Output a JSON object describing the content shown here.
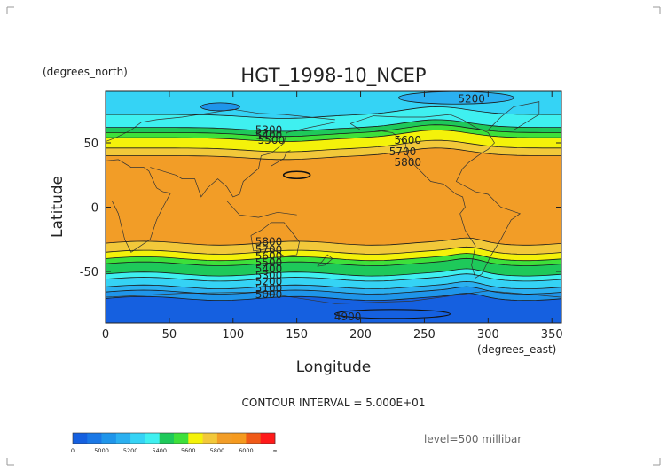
{
  "chart_data": {
    "type": "heatmap",
    "title": "HGT_1998-10_NCEP",
    "xlabel": "Longitude",
    "ylabel": "Latitude",
    "x_units": "(degrees_east)",
    "y_units": "(degrees_north)",
    "xlim": [
      0,
      357.5
    ],
    "ylim": [
      -90,
      90
    ],
    "x_ticks": [
      0,
      50,
      100,
      150,
      200,
      250,
      300,
      350
    ],
    "y_ticks": [
      -50,
      0,
      50
    ],
    "grid": false,
    "contour_interval_text": "CONTOUR INTERVAL = 5.000E+01",
    "level_text": "level=500 millibar",
    "colorbar": {
      "bins": [
        {
          "lo": 0,
          "hi": 4950,
          "color": "#1560e0"
        },
        {
          "lo": 4950,
          "hi": 5000,
          "color": "#1a78e6"
        },
        {
          "lo": 5000,
          "hi": 5100,
          "color": "#1f95ea"
        },
        {
          "lo": 5100,
          "hi": 5200,
          "color": "#2bb0f0"
        },
        {
          "lo": 5200,
          "hi": 5300,
          "color": "#35d3f5"
        },
        {
          "lo": 5300,
          "hi": 5400,
          "color": "#3ff0f0"
        },
        {
          "lo": 5400,
          "hi": 5500,
          "color": "#1ec95a"
        },
        {
          "lo": 5500,
          "hi": 5600,
          "color": "#3ee03a"
        },
        {
          "lo": 5600,
          "hi": 5700,
          "color": "#f4f20a"
        },
        {
          "lo": 5700,
          "hi": 5800,
          "color": "#f2c83a"
        },
        {
          "lo": 5800,
          "hi": 5900,
          "color": "#f29d27"
        },
        {
          "lo": 5900,
          "hi": 6000,
          "color": "#f59a1f"
        },
        {
          "lo": 6000,
          "hi": 6100,
          "color": "#f05a18"
        },
        {
          "lo": 6100,
          "hi": 99999,
          "color": "#ff1a1a"
        }
      ],
      "tick_labels": [
        "0",
        "5000",
        "5200",
        "5400",
        "5600",
        "5800",
        "6000",
        "∞"
      ]
    },
    "zonal_bands": [
      {
        "lat_from": 90,
        "lat_to": 72,
        "value_range": "5200-5300",
        "color": "#35d3f5"
      },
      {
        "lat_from": 72,
        "lat_to": 62,
        "value_range": "5300-5400",
        "color": "#3ff0f0"
      },
      {
        "lat_from": 62,
        "lat_to": 58,
        "value_range": "5400-5500",
        "color": "#1ec95a"
      },
      {
        "lat_from": 58,
        "lat_to": 54,
        "value_range": "5500-5600",
        "color": "#3ee03a"
      },
      {
        "lat_from": 54,
        "lat_to": 46,
        "value_range": "5600-5700",
        "color": "#f4f20a"
      },
      {
        "lat_from": 46,
        "lat_to": 40,
        "value_range": "5700-5800",
        "color": "#f2c83a"
      },
      {
        "lat_from": 40,
        "lat_to": -28,
        "value_range": "5800-5900",
        "color": "#f29d27"
      },
      {
        "lat_from": -28,
        "lat_to": -35,
        "value_range": "5700-5800",
        "color": "#f2c83a"
      },
      {
        "lat_from": -35,
        "lat_to": -40,
        "value_range": "5600-5700",
        "color": "#f4f20a"
      },
      {
        "lat_from": -40,
        "lat_to": -44,
        "value_range": "5500-5600",
        "color": "#3ee03a"
      },
      {
        "lat_from": -44,
        "lat_to": -52,
        "value_range": "5400-5500",
        "color": "#1ec95a"
      },
      {
        "lat_from": -52,
        "lat_to": -56,
        "value_range": "5300-5400",
        "color": "#3ff0f0"
      },
      {
        "lat_from": -56,
        "lat_to": -62,
        "value_range": "5200-5300",
        "color": "#35d3f5"
      },
      {
        "lat_from": -62,
        "lat_to": -66,
        "value_range": "5100-5200",
        "color": "#2bb0f0"
      },
      {
        "lat_from": -66,
        "lat_to": -71,
        "value_range": "5000-5100",
        "color": "#1f95ea"
      },
      {
        "lat_from": -71,
        "lat_to": -90,
        "value_range": "4900-5000",
        "color": "#1560e0"
      }
    ],
    "contour_labels": [
      {
        "text": "5200",
        "lon": 287,
        "lat": 84
      },
      {
        "text": "5300",
        "lon": 128,
        "lat": 60
      },
      {
        "text": "5400",
        "lon": 128,
        "lat": 56
      },
      {
        "text": "5500",
        "lon": 130,
        "lat": 52
      },
      {
        "text": "5600",
        "lon": 237,
        "lat": 52
      },
      {
        "text": "5700",
        "lon": 233,
        "lat": 43
      },
      {
        "text": "5800",
        "lon": 237,
        "lat": 35
      },
      {
        "text": "5800",
        "lon": 128,
        "lat": -27
      },
      {
        "text": "5700",
        "lon": 128,
        "lat": -33
      },
      {
        "text": "5600",
        "lon": 128,
        "lat": -38
      },
      {
        "text": "5500",
        "lon": 128,
        "lat": -43
      },
      {
        "text": "5400",
        "lon": 128,
        "lat": -48
      },
      {
        "text": "5300",
        "lon": 128,
        "lat": -53
      },
      {
        "text": "5200",
        "lon": 128,
        "lat": -58
      },
      {
        "text": "5100",
        "lon": 128,
        "lat": -63
      },
      {
        "text": "5000",
        "lon": 128,
        "lat": -68
      },
      {
        "text": "4900",
        "lon": 190,
        "lat": -85
      }
    ]
  }
}
